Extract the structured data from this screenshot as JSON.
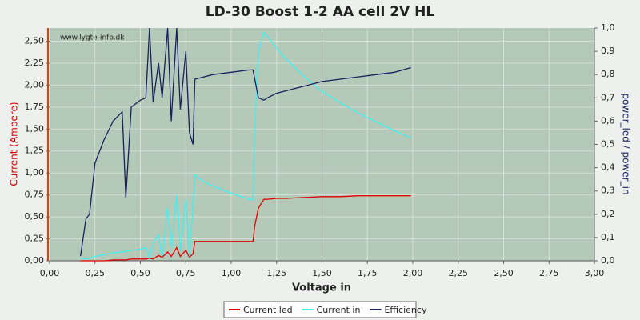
{
  "chart_data": {
    "type": "line",
    "title": "LD-30 Boost 1-2 AA cell 2V HL",
    "watermark": "www.lygte-info.dk",
    "xlabel": "Voltage in",
    "ylabel": "Current (Ampere)",
    "y2label": "power_led / power_in",
    "x": [
      0.17,
      0.2,
      0.22,
      0.25,
      0.3,
      0.35,
      0.4,
      0.42,
      0.45,
      0.5,
      0.53,
      0.55,
      0.57,
      0.6,
      0.62,
      0.65,
      0.67,
      0.7,
      0.72,
      0.75,
      0.77,
      0.79,
      0.8,
      0.85,
      0.9,
      1.0,
      1.1,
      1.12,
      1.13,
      1.15,
      1.18,
      1.2,
      1.25,
      1.3,
      1.4,
      1.5,
      1.6,
      1.7,
      1.8,
      1.9,
      1.99
    ],
    "series": [
      {
        "name": "Current led",
        "color": "#e00000",
        "values": [
          0,
          0,
          0,
          0,
          0,
          0.01,
          0.01,
          0.01,
          0.02,
          0.02,
          0.02,
          0.03,
          0.02,
          0.06,
          0.04,
          0.1,
          0.05,
          0.15,
          0.05,
          0.12,
          0.04,
          0.08,
          0.22,
          0.22,
          0.22,
          0.22,
          0.22,
          0.22,
          0.4,
          0.6,
          0.7,
          0.7,
          0.71,
          0.71,
          0.72,
          0.73,
          0.73,
          0.74,
          0.74,
          0.74,
          0.74
        ]
      },
      {
        "name": "Current in",
        "color": "#40f0f0",
        "values": [
          0.03,
          0.02,
          0.03,
          0.05,
          0.07,
          0.09,
          0.1,
          0.11,
          0.12,
          0.13,
          0.15,
          0.03,
          0.2,
          0.3,
          0.05,
          0.6,
          0.15,
          0.75,
          0.1,
          0.7,
          0.05,
          0.6,
          0.98,
          0.9,
          0.85,
          0.77,
          0.7,
          0.69,
          1.5,
          2.4,
          2.6,
          2.55,
          2.42,
          2.3,
          2.1,
          1.93,
          1.8,
          1.68,
          1.58,
          1.48,
          1.4
        ]
      },
      {
        "name": "Efficiency",
        "color": "#1a1f5e",
        "axis": "y2",
        "values": [
          0.02,
          0.18,
          0.2,
          0.42,
          0.52,
          0.6,
          0.64,
          0.27,
          0.66,
          0.69,
          0.7,
          1.0,
          0.68,
          0.85,
          0.7,
          1.0,
          0.6,
          1.0,
          0.65,
          0.9,
          0.55,
          0.5,
          0.78,
          0.79,
          0.8,
          0.81,
          0.82,
          0.82,
          0.78,
          0.7,
          0.69,
          0.7,
          0.72,
          0.73,
          0.75,
          0.77,
          0.78,
          0.79,
          0.8,
          0.81,
          0.83
        ]
      }
    ],
    "xlim": [
      0,
      3
    ],
    "xticks": [
      {
        "value": 0,
        "label": "0,00"
      },
      {
        "value": 0.25,
        "label": "0,25"
      },
      {
        "value": 0.5,
        "label": "0,50"
      },
      {
        "value": 0.75,
        "label": "0,75"
      },
      {
        "value": 1,
        "label": "1,00"
      },
      {
        "value": 1.25,
        "label": "1,25"
      },
      {
        "value": 1.5,
        "label": "1,50"
      },
      {
        "value": 1.75,
        "label": "1,75"
      },
      {
        "value": 2,
        "label": "2,00"
      },
      {
        "value": 2.25,
        "label": "2,25"
      },
      {
        "value": 2.5,
        "label": "2,50"
      },
      {
        "value": 2.75,
        "label": "2,75"
      },
      {
        "value": 3,
        "label": "3,00"
      }
    ],
    "ylim": [
      0,
      2.65
    ],
    "yticks": [
      {
        "value": 0,
        "label": "0,00"
      },
      {
        "value": 0.25,
        "label": "0,25"
      },
      {
        "value": 0.5,
        "label": "0,50"
      },
      {
        "value": 0.75,
        "label": "0,75"
      },
      {
        "value": 1,
        "label": "1,00"
      },
      {
        "value": 1.25,
        "label": "1,25"
      },
      {
        "value": 1.5,
        "label": "1,50"
      },
      {
        "value": 1.75,
        "label": "1,75"
      },
      {
        "value": 2,
        "label": "2,00"
      },
      {
        "value": 2.25,
        "label": "2,25"
      },
      {
        "value": 2.5,
        "label": "2,50"
      }
    ],
    "y2lim": [
      0,
      1
    ],
    "y2ticks": [
      {
        "value": 0,
        "label": "0,0"
      },
      {
        "value": 0.1,
        "label": "0,1"
      },
      {
        "value": 0.2,
        "label": "0,2"
      },
      {
        "value": 0.3,
        "label": "0,3"
      },
      {
        "value": 0.4,
        "label": "0,4"
      },
      {
        "value": 0.5,
        "label": "0,5"
      },
      {
        "value": 0.6,
        "label": "0,6"
      },
      {
        "value": 0.7,
        "label": "0,7"
      },
      {
        "value": 0.8,
        "label": "0,8"
      },
      {
        "value": 0.9,
        "label": "0,9"
      },
      {
        "value": 1,
        "label": "1,0"
      }
    ],
    "grid": true,
    "legend": "bottom"
  }
}
